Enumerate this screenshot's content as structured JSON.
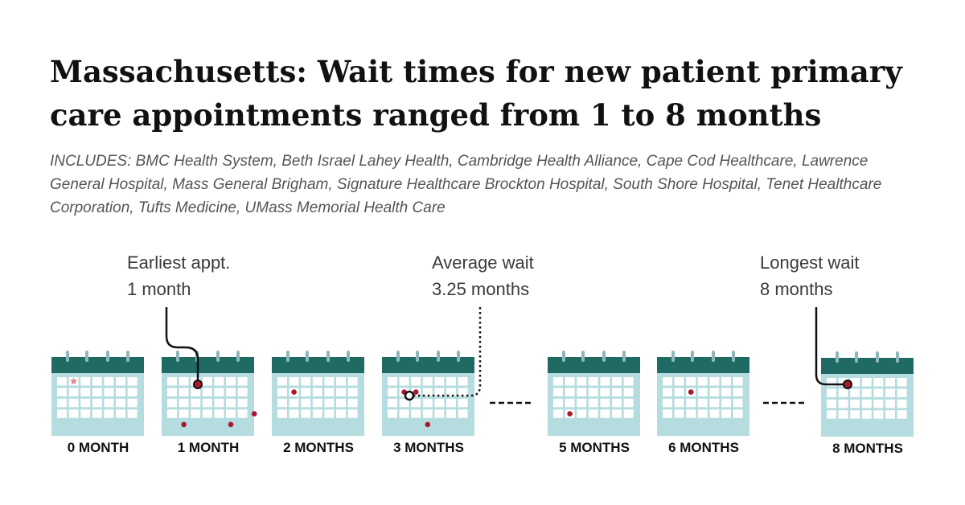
{
  "title": "Massachusetts: Wait times for new patient primary care appointments ranged from 1 to 8 months",
  "includes": "INCLUDES: BMC Health System, Beth Israel Lahey Health, Cambridge Health Alliance, Cape Cod Healthcare, Lawrence General Hospital, Mass General Brigham, Signature Healthcare Brockton Hospital, South Shore Hospital, Tenet Healthcare Corporation, Tufts Medicine, UMass Memorial Health Care",
  "callouts": {
    "earliest": {
      "label": "Earliest appt.",
      "value": "1 month"
    },
    "average": {
      "label": "Average wait",
      "value": "3.25 months"
    },
    "longest": {
      "label": "Longest wait",
      "value": "8 months"
    }
  },
  "calendars": [
    {
      "label": "0 MONTH"
    },
    {
      "label": "1 MONTH"
    },
    {
      "label": "2 MONTHS"
    },
    {
      "label": "3 MONTHS"
    },
    {
      "label": "5 MONTHS"
    },
    {
      "label": "6 MONTHS"
    },
    {
      "label": "8 MONTHS"
    }
  ],
  "colors": {
    "header": "#1f6b64",
    "body": "#b5dcdf",
    "cell": "#ffffff",
    "ring": "#8fb7bb",
    "dot": "#a8192b",
    "star": "#e5858a",
    "line": "#111111"
  }
}
